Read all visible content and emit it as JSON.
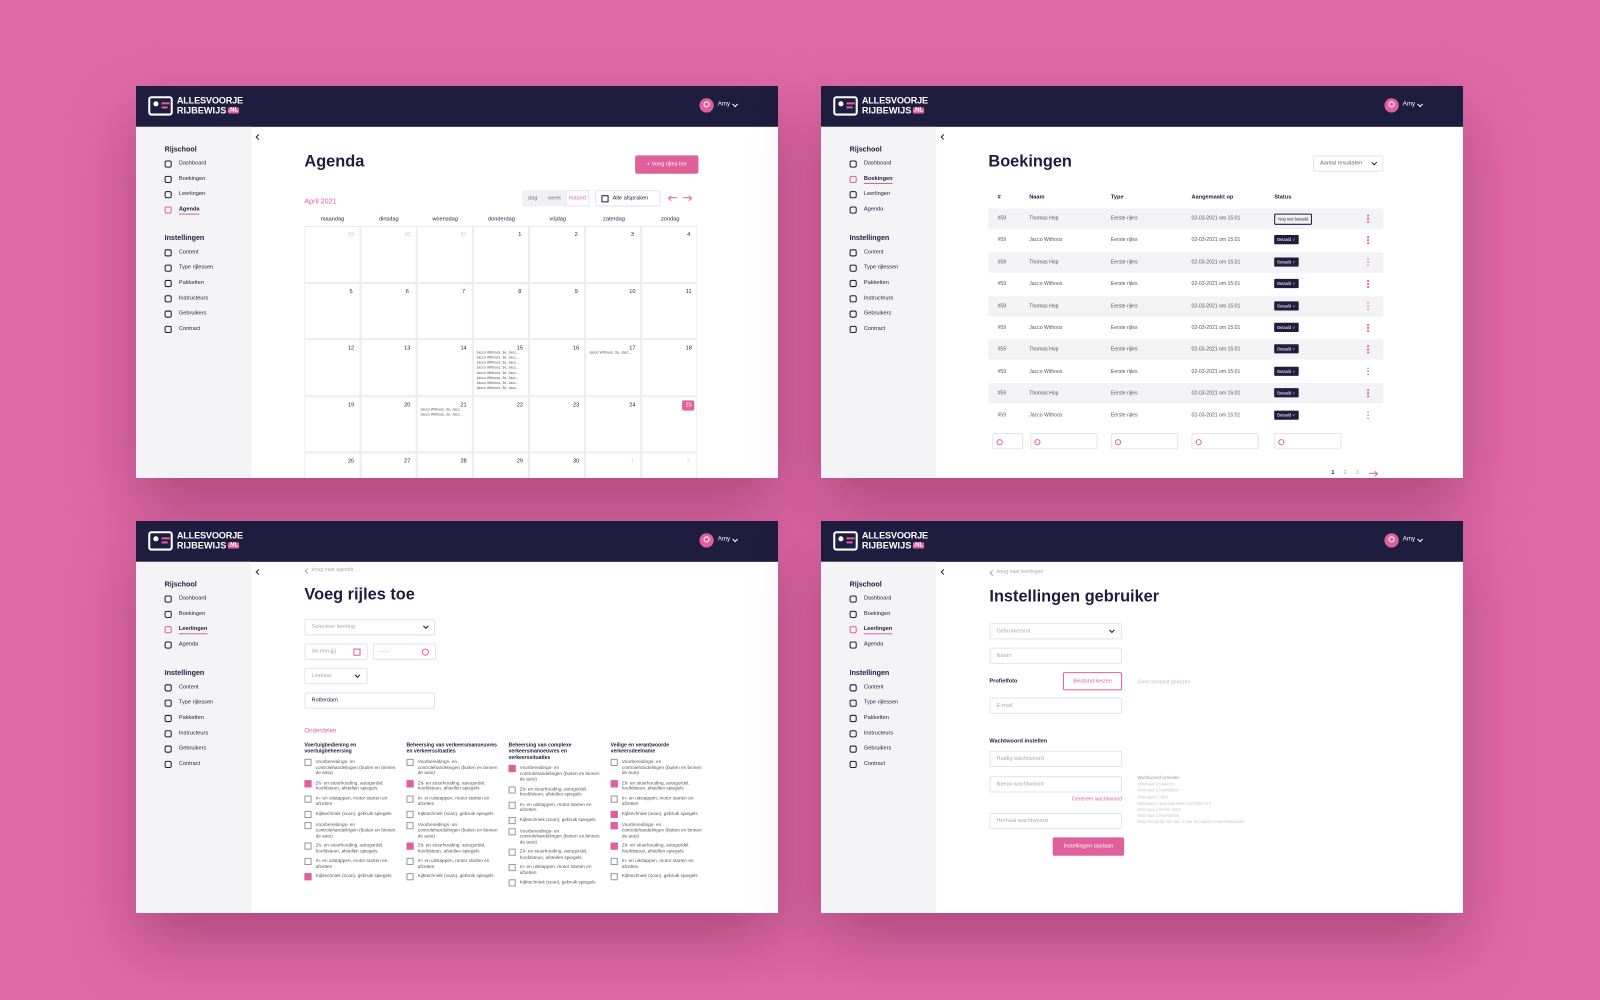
{
  "brand": {
    "line1": "ALLESVOORJE",
    "line2": "RIJBEWIJS",
    "tld": ".NL"
  },
  "user": "Amy",
  "sidebar": {
    "groups": [
      {
        "title": "Rijschool",
        "items": [
          "Dashboard",
          "Boekingen",
          "Leerlingen",
          "Agenda"
        ]
      },
      {
        "title": "Instellingen",
        "items": [
          "Content",
          "Type rijlessen",
          "Pakketten",
          "Instructeurs",
          "Gebruikers",
          "Contract"
        ]
      }
    ]
  },
  "agenda": {
    "title": "Agenda",
    "active": [
      0,
      3
    ],
    "button": "+ Voeg rijles toe",
    "month": "April 2021",
    "views": [
      "dag",
      "week",
      "maand"
    ],
    "active_view": 2,
    "filter": "Alle afspraken",
    "weekdays": [
      "maandag",
      "dinsdag",
      "woensdag",
      "donderdag",
      "vrijdag",
      "zaterdag",
      "zondag"
    ],
    "weeks": [
      [
        29,
        30,
        31,
        1,
        2,
        3,
        4
      ],
      [
        5,
        6,
        7,
        8,
        9,
        10,
        11
      ],
      [
        12,
        13,
        14,
        15,
        16,
        17,
        18
      ],
      [
        19,
        20,
        21,
        22,
        23,
        24,
        25
      ],
      [
        26,
        27,
        28,
        29,
        30,
        1,
        2
      ]
    ],
    "today": [
      3,
      6
    ],
    "events": [
      {
        "week": 2,
        "weekday": 3,
        "items": [
          "Jacco Withoos, 3e, Jacc...",
          "Jacco Withoos, 3e, Jacc...",
          "Jacco Withoos, 3e, Jacc...",
          "Jacco Withoos, 3e, Jacc...",
          "Jacco Withoos, 3e, Jacc...",
          "Jacco Withoos, 3e, Jacc...",
          "Jacco Withoos, 3e, Jacc...",
          "Jacco Withoos, 3e, Jacc..."
        ]
      },
      {
        "week": 2,
        "weekday": 5,
        "items": [
          "Jacco Withoos, 3e, Jacc..."
        ]
      },
      {
        "week": 3,
        "weekday": 2,
        "items": [
          "Jacco Withoos, 3e, Jacc...",
          "Jacco Withoos, 3e, Jacc..."
        ]
      }
    ]
  },
  "booking": {
    "title": "Boekingen",
    "active": [
      0,
      1
    ],
    "results": "Aantal resultaten",
    "columns": [
      "#",
      "Naam",
      "Type",
      "Aangemaakt op",
      "Status"
    ],
    "rows": [
      {
        "id": "#59",
        "name": "Thomas Hop",
        "type": "Eerste rijles",
        "created": "02-03-2021 om 15:01",
        "status": "Nog niet betaald",
        "paid": false
      },
      {
        "id": "#59",
        "name": "Jacco Withoos",
        "type": "Eerste rijles",
        "created": "02-03-2021 om 15:01",
        "status": "Betaald ✓",
        "paid": true
      },
      {
        "id": "#59",
        "name": "Thomas Hop",
        "type": "Eerste rijles",
        "created": "02-03-2021 om 15:01",
        "status": "Betaald ✓",
        "paid": true
      },
      {
        "id": "#59",
        "name": "Jacco Withoos",
        "type": "Eerste rijles",
        "created": "02-03-2021 om 15:01",
        "status": "Betaald ✓",
        "paid": true
      },
      {
        "id": "#59",
        "name": "Thomas Hop",
        "type": "Eerste rijles",
        "created": "02-03-2021 om 15:01",
        "status": "Betaald ✓",
        "paid": true
      },
      {
        "id": "#59",
        "name": "Jacco Withoos",
        "type": "Eerste rijles",
        "created": "02-03-2021 om 15:01",
        "status": "Betaald ✓",
        "paid": true
      },
      {
        "id": "#59",
        "name": "Thomas Hop",
        "type": "Eerste rijles",
        "created": "02-03-2021 om 15:01",
        "status": "Betaald ✓",
        "paid": true
      },
      {
        "id": "#59",
        "name": "Jacco Withoos",
        "type": "Eerste rijles",
        "created": "02-03-2021 om 15:01",
        "status": "Betaald ✓",
        "paid": true
      },
      {
        "id": "#59",
        "name": "Thomas Hop",
        "type": "Eerste rijles",
        "created": "02-03-2021 om 15:01",
        "status": "Betaald ✓",
        "paid": true
      },
      {
        "id": "#59",
        "name": "Jacco Withoos",
        "type": "Eerste rijles",
        "created": "02-03-2021 om 15:01",
        "status": "Betaald ✓",
        "paid": true
      }
    ],
    "pages": [
      1,
      2,
      3
    ],
    "current_page": 0
  },
  "lesson": {
    "title": "Voeg rijles toe",
    "active": [
      0,
      2
    ],
    "back": "terug naar agenda",
    "student": "Selecteer leerling",
    "date": "dd-mm-jjjj",
    "time": "--:--",
    "car": "Leskaar",
    "location": "Rotterdam",
    "section": "Onderdelen",
    "columns": [
      {
        "title": "Voertuigbediening en voertuigbeheersing",
        "checked": [
          false,
          true,
          false,
          false,
          false,
          false,
          false,
          true
        ]
      },
      {
        "title": "Beheersing van verkeersmanoeuvres en verkeerssituaties",
        "checked": [
          false,
          true,
          false,
          false,
          false,
          true,
          false,
          false
        ]
      },
      {
        "title": "Beheersing van complexe verkeersmanoeuvres en verkeerssituaties",
        "checked": [
          true,
          false,
          false,
          false,
          false,
          false,
          false,
          false
        ]
      },
      {
        "title": "Veilige en verantwoorde verkeersdeelname",
        "checked": [
          false,
          true,
          false,
          true,
          true,
          true,
          false,
          false
        ]
      }
    ],
    "items": [
      "Voorbereidings- en controlehandelingen (buiten en binnen de auto)",
      "Zit- en stuurhouding, autogordel, hoofdsteun, afstellen spiegels",
      "In- en uitstappen, motor starten en afzetten",
      "Kijktechniek (scan), gebruik spiegels",
      "Voorbereidings- en controlehandelingen (buiten en binnen de auto)",
      "Zit- en stuurhouding, autogordel, hoofdsteun, afstellen spiegels",
      "In- en uitstappen, motor starten en afzetten",
      "Kijktechniek (scan), gebruik spiegels"
    ]
  },
  "settings": {
    "title": "Instellingen gebruiker",
    "active": [
      0,
      2
    ],
    "back": "terug naar leerlingen",
    "role": "Gebruikersrol",
    "name": "Naam",
    "photo": "Profielfoto",
    "choose": "Bestand kiezen",
    "no_file": "Geen bestand gekozen",
    "email": "E-mail",
    "password_section": "Wachtwoord instellen",
    "current": "Huidig wachtwoord",
    "new": "Nieuw wachtwoord",
    "generate": "Genereer wachtwoord",
    "repeat": "Herhaal wachtwoord",
    "save": "Instellingen opslaan",
    "requirements": [
      "Wachtwoord vereisten",
      "Minimaal 10 tekens",
      "Minimaal 1 hoofdletter",
      "Minimaal 1 cijfer",
      "Minimaal 1 speciaal teken (!@#$%^&*)",
      "Minimaal 1 kleine letter",
      "Minimaal 1 hoofdletter",
      "Mag niet gelijk zijn aan 1 van de laatste 5 wachtwoorden"
    ]
  }
}
